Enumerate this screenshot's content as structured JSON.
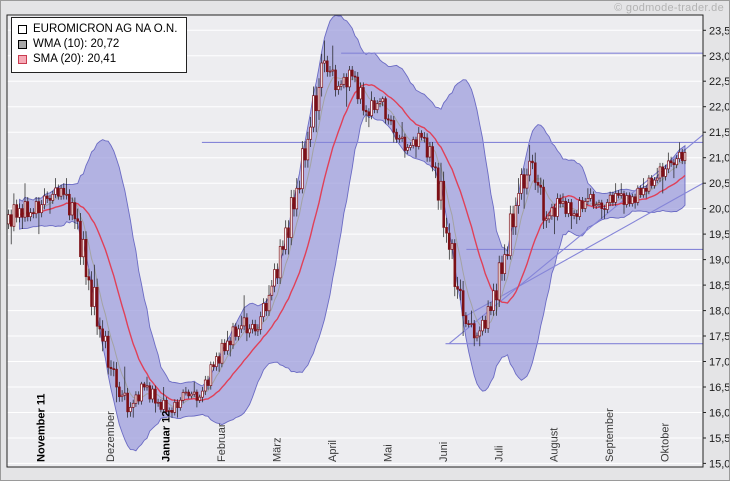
{
  "watermark": "© godmode-trader.de",
  "legend": {
    "title": "EUROMICRON AG NA O.N.",
    "wma_label": "WMA (10): 20,72",
    "sma_label": "SMA (20): 20,41"
  },
  "colors": {
    "outer_bg": "#e4e4e6",
    "plot_bg": "#ededf0",
    "grid": "#ffffff",
    "band_fill": "#9b9bdd",
    "band_stroke": "#6161c0",
    "sma_line": "#e04058",
    "wma_line": "#a3a3a3",
    "candle_body": "#7d1016",
    "candle_up_fill": "#ffffff",
    "wick": "#1a1a1a",
    "level_line": "#8585d8",
    "axis_text": "#1a1a1a",
    "month_text": "#3a3a3a",
    "month_text_bold": "#000000",
    "plot_border": "#222222"
  },
  "chart_data": {
    "type": "candlestick",
    "title": "EUROMICRON AG NA O.N.",
    "overlays": [
      {
        "name": "WMA",
        "period": 10,
        "last_value": "20,72"
      },
      {
        "name": "SMA",
        "period": 20,
        "last_value": "20,41"
      },
      {
        "name": "bollinger-band",
        "period": 20,
        "stddev": 2
      }
    ],
    "ylim": [
      15.0,
      23.5
    ],
    "ytick_step": 0.5,
    "ytick_labels": [
      "23,5",
      "23,0",
      "22,5",
      "22,0",
      "21,5",
      "21,0",
      "20,5",
      "20,0",
      "19,5",
      "19,0",
      "18,5",
      "18,0",
      "17,5",
      "17,0",
      "16,5",
      "16,0",
      "15,5",
      "15,0"
    ],
    "months": [
      {
        "label": "November 11",
        "week": 2,
        "bold": true
      },
      {
        "label": "Dezember",
        "week": 7,
        "bold": false
      },
      {
        "label": "Januar 12",
        "week": 11,
        "bold": true
      },
      {
        "label": "Februar",
        "week": 15,
        "bold": false
      },
      {
        "label": "März",
        "week": 19,
        "bold": false
      },
      {
        "label": "April",
        "week": 23,
        "bold": false
      },
      {
        "label": "Mai",
        "week": 27,
        "bold": false
      },
      {
        "label": "Juni",
        "week": 31,
        "bold": false
      },
      {
        "label": "Juli",
        "week": 35,
        "bold": false
      },
      {
        "label": "August",
        "week": 39,
        "bold": false
      },
      {
        "label": "September",
        "week": 43,
        "bold": false
      },
      {
        "label": "Oktober",
        "week": 47,
        "bold": false
      }
    ],
    "weekly_ohlc": [
      [
        19.7,
        20.3,
        19.3,
        20.0
      ],
      [
        20.0,
        20.5,
        19.6,
        19.9
      ],
      [
        19.9,
        20.4,
        19.5,
        20.2
      ],
      [
        20.2,
        20.6,
        19.9,
        20.4
      ],
      [
        20.4,
        20.6,
        19.6,
        19.8
      ],
      [
        19.8,
        20.0,
        18.4,
        18.6
      ],
      [
        18.6,
        18.9,
        17.2,
        17.4
      ],
      [
        17.4,
        17.6,
        16.2,
        16.5
      ],
      [
        16.5,
        16.9,
        15.9,
        16.1
      ],
      [
        16.1,
        16.6,
        15.9,
        16.5
      ],
      [
        16.5,
        16.7,
        16.0,
        16.2
      ],
      [
        16.2,
        16.5,
        15.9,
        16.0
      ],
      [
        16.0,
        16.5,
        15.9,
        16.4
      ],
      [
        16.4,
        16.6,
        16.1,
        16.3
      ],
      [
        16.3,
        17.0,
        16.2,
        16.9
      ],
      [
        16.9,
        17.6,
        16.8,
        17.4
      ],
      [
        17.4,
        17.9,
        17.1,
        17.7
      ],
      [
        17.7,
        18.3,
        17.4,
        17.6
      ],
      [
        17.6,
        18.5,
        17.5,
        18.3
      ],
      [
        18.3,
        19.4,
        18.2,
        19.2
      ],
      [
        19.2,
        20.6,
        19.1,
        20.4
      ],
      [
        20.4,
        21.8,
        20.3,
        21.6
      ],
      [
        21.6,
        23.3,
        21.5,
        22.9
      ],
      [
        22.9,
        23.2,
        22.2,
        22.4
      ],
      [
        22.4,
        22.8,
        22.0,
        22.6
      ],
      [
        22.6,
        22.7,
        21.7,
        21.9
      ],
      [
        21.9,
        22.3,
        21.6,
        22.1
      ],
      [
        22.1,
        22.2,
        21.3,
        21.5
      ],
      [
        21.5,
        21.7,
        21.0,
        21.2
      ],
      [
        21.2,
        21.6,
        21.0,
        21.4
      ],
      [
        21.4,
        21.5,
        20.6,
        20.8
      ],
      [
        20.8,
        20.9,
        19.0,
        19.2
      ],
      [
        19.2,
        19.4,
        17.5,
        17.9
      ],
      [
        17.9,
        18.0,
        17.3,
        17.5
      ],
      [
        17.5,
        18.2,
        17.3,
        18.0
      ],
      [
        18.0,
        19.3,
        17.9,
        19.1
      ],
      [
        19.1,
        20.6,
        19.0,
        20.3
      ],
      [
        20.3,
        21.25,
        20.0,
        20.9
      ],
      [
        20.9,
        21.1,
        19.6,
        19.8
      ],
      [
        19.8,
        20.3,
        19.5,
        20.1
      ],
      [
        20.1,
        20.3,
        19.6,
        19.9
      ],
      [
        19.9,
        20.4,
        19.7,
        20.2
      ],
      [
        20.2,
        20.4,
        19.8,
        20.0
      ],
      [
        20.0,
        20.5,
        19.8,
        20.3
      ],
      [
        20.3,
        20.5,
        19.9,
        20.1
      ],
      [
        20.1,
        20.6,
        20.0,
        20.4
      ],
      [
        20.4,
        20.8,
        20.2,
        20.6
      ],
      [
        20.6,
        21.1,
        20.3,
        20.9
      ],
      [
        20.9,
        21.3,
        20.6,
        21.1
      ]
    ],
    "levels": [
      {
        "price": 23.05,
        "from": 0.48,
        "to": 1.0
      },
      {
        "price": 21.3,
        "from": 0.28,
        "to": 1.0
      },
      {
        "price": 19.2,
        "from": 0.66,
        "to": 1.0
      },
      {
        "price": 17.35,
        "from": 0.63,
        "to": 1.0
      }
    ],
    "trendlines": [
      {
        "x1": 0.635,
        "p1": 17.35,
        "x2": 1.0,
        "p2": 21.45
      },
      {
        "x1": 0.66,
        "p1": 17.9,
        "x2": 1.0,
        "p2": 20.5
      }
    ]
  }
}
